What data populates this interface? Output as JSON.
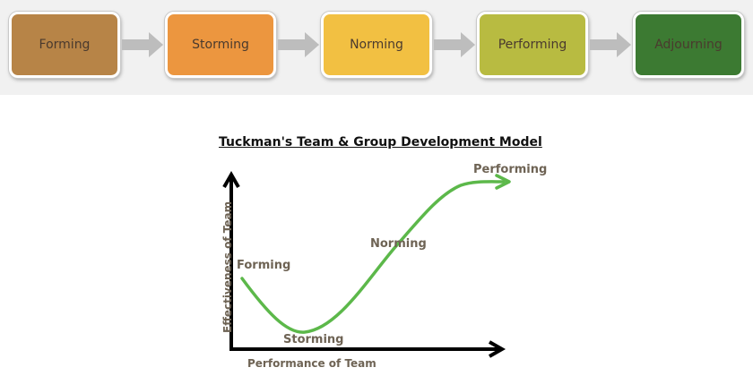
{
  "stages": [
    {
      "label": "Forming",
      "color": "#b78447"
    },
    {
      "label": "Storming",
      "color": "#ec963f"
    },
    {
      "label": "Norming",
      "color": "#f2c042"
    },
    {
      "label": "Performing",
      "color": "#b8bb41"
    },
    {
      "label": "Adjourning",
      "color": "#3c7a32"
    }
  ],
  "arrow_color": "#bdbdbd",
  "diagram": {
    "title": "Tuckman's Team & Group Development Model",
    "y_axis_label": "Effectiveness of Team",
    "x_axis_label": "Performance of Team",
    "curve_color": "#5cb84a",
    "points": {
      "forming": "Forming",
      "storming": "Storming",
      "norming": "Norming",
      "performing": "Performing"
    }
  }
}
